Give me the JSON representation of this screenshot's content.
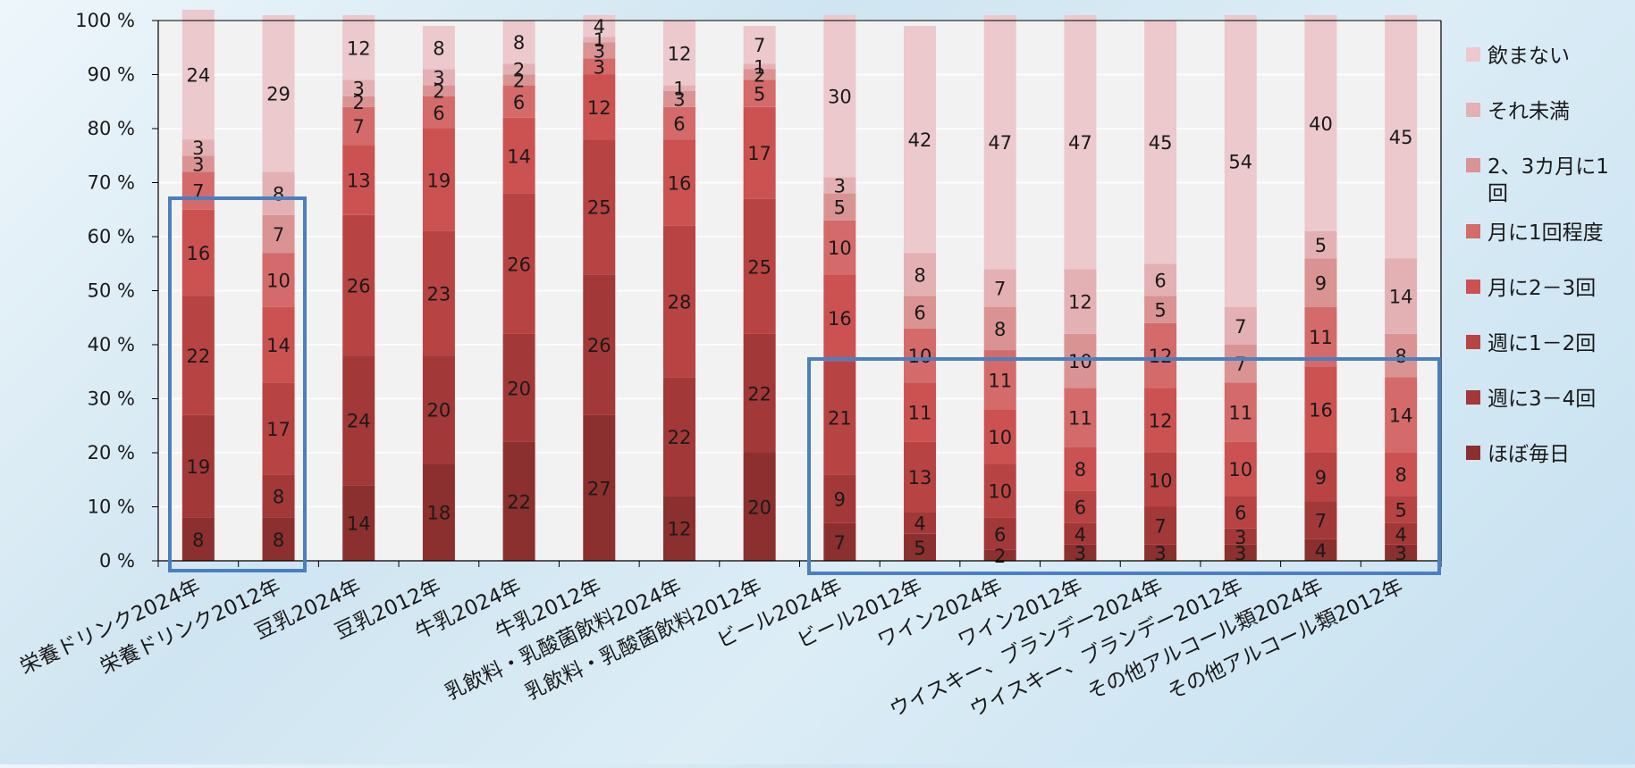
{
  "chart_data": {
    "type": "bar",
    "stacked": true,
    "percent": true,
    "ylim": [
      0,
      100
    ],
    "yticks": [
      "0 %",
      "10 %",
      "20 %",
      "30 %",
      "40 %",
      "50 %",
      "60 %",
      "70 %",
      "80 %",
      "90 %",
      "100 %"
    ],
    "legend_position": "right",
    "categories": [
      "栄養ドリンク2024年",
      "栄養ドリンク2012年",
      "豆乳2024年",
      "豆乳2012年",
      "牛乳2024年",
      "牛乳2012年",
      "乳飲料・乳酸菌飲料2024年",
      "乳飲料・乳酸菌飲料2012年",
      "ビール2024年",
      "ビール2012年",
      "ワイン2024年",
      "ワイン2012年",
      "ウイスキー、ブランデー2024年",
      "ウイスキー、ブランデー2012年",
      "その他アルコール類2024年",
      "その他アルコール類2012年"
    ],
    "series": [
      {
        "name": "ほぼ毎日",
        "color": "#8c2f2f",
        "values": [
          8,
          8,
          14,
          18,
          22,
          27,
          12,
          20,
          7,
          5,
          2,
          3,
          3,
          3,
          4,
          3
        ]
      },
      {
        "name": "週に3－4回",
        "color": "#a33838",
        "values": [
          19,
          8,
          24,
          20,
          20,
          26,
          22,
          22,
          9,
          4,
          6,
          4,
          7,
          3,
          7,
          4
        ]
      },
      {
        "name": "週に1－2回",
        "color": "#b84343",
        "values": [
          22,
          17,
          26,
          23,
          26,
          25,
          28,
          25,
          21,
          13,
          10,
          6,
          10,
          6,
          9,
          5
        ]
      },
      {
        "name": "月に2－3回",
        "color": "#cc5252",
        "values": [
          16,
          14,
          13,
          19,
          14,
          12,
          16,
          17,
          16,
          11,
          10,
          8,
          12,
          10,
          16,
          8
        ]
      },
      {
        "name": "月に1回程度",
        "color": "#d46a6a",
        "values": [
          7,
          10,
          7,
          6,
          6,
          3,
          6,
          5,
          10,
          10,
          11,
          11,
          12,
          11,
          11,
          14
        ]
      },
      {
        "name": "2、3カ月に1回",
        "color": "#d99393",
        "values": [
          3,
          7,
          2,
          2,
          2,
          3,
          3,
          2,
          5,
          6,
          8,
          10,
          5,
          7,
          9,
          8
        ]
      },
      {
        "name": "それ未満",
        "color": "#e3b1b3",
        "values": [
          3,
          8,
          3,
          3,
          2,
          1,
          1,
          1,
          3,
          8,
          7,
          12,
          6,
          7,
          5,
          14
        ]
      },
      {
        "name": "飲まない",
        "color": "#ebc9cc",
        "values": [
          24,
          29,
          12,
          8,
          8,
          4,
          12,
          7,
          30,
          42,
          47,
          47,
          45,
          54,
          40,
          45
        ]
      }
    ],
    "legend_order": [
      "飲まない",
      "それ未満",
      "2、3カ月に1回",
      "月に1回程度",
      "月に2－3回",
      "週に1－2回",
      "週に3－4回",
      "ほぼ毎日"
    ]
  },
  "colors": {
    "highlight_box": "#4a7fc0",
    "plot_background": "#f2f2f2",
    "gridline": "#ffffff",
    "axis": "#000000"
  }
}
